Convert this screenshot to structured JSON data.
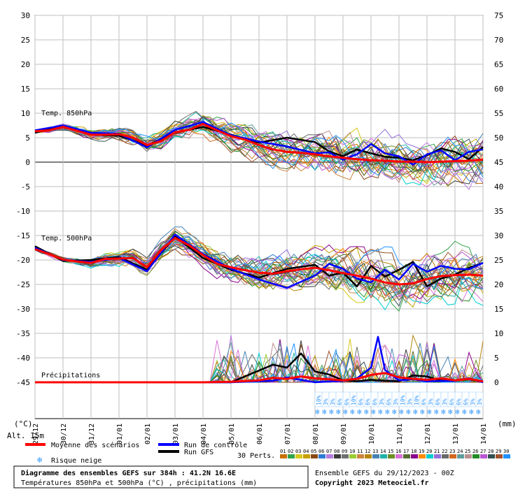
{
  "chart_data": {
    "type": "line",
    "y_left_ticks": [
      30,
      25,
      20,
      15,
      10,
      5,
      0,
      -5,
      -10,
      -15,
      -20,
      -25,
      -30,
      -35,
      -40,
      -45
    ],
    "y_right_ticks": [
      75,
      70,
      65,
      60,
      55,
      50,
      45,
      40,
      35,
      30,
      25,
      20,
      15,
      10,
      5,
      0
    ],
    "y_left_range": [
      -45,
      30
    ],
    "y_right_range": [
      0,
      75
    ],
    "y_left_unit": "(°C)",
    "y_right_unit": "(mm)",
    "x_range_hours": [
      0,
      384
    ],
    "x_ticks": [
      {
        "h": 0,
        "label": "29/12"
      },
      {
        "h": 24,
        "label": "30/12"
      },
      {
        "h": 48,
        "label": "31/12"
      },
      {
        "h": 72,
        "label": "01/01"
      },
      {
        "h": 96,
        "label": "02/01"
      },
      {
        "h": 120,
        "label": "03/01"
      },
      {
        "h": 144,
        "label": "04/01"
      },
      {
        "h": 168,
        "label": "05/01"
      },
      {
        "h": 192,
        "label": "06/01"
      },
      {
        "h": 216,
        "label": "07/01"
      },
      {
        "h": 240,
        "label": "08/01"
      },
      {
        "h": 264,
        "label": "09/01"
      },
      {
        "h": 288,
        "label": "10/01"
      },
      {
        "h": 312,
        "label": "11/01"
      },
      {
        "h": 336,
        "label": "12/01"
      },
      {
        "h": 360,
        "label": "13/01"
      },
      {
        "h": 384,
        "label": "14/01"
      }
    ],
    "panel_labels": {
      "t850": "Temp. 850hPa",
      "t500": "Temp. 500hPa",
      "precip": "Précipitations"
    },
    "altitude": "Alt. 15m",
    "series": [
      {
        "name": "Moyenne des scénarios",
        "var": "t850",
        "x": [
          0,
          12,
          24,
          36,
          48,
          60,
          72,
          84,
          96,
          108,
          120,
          132,
          144,
          156,
          168,
          180,
          192,
          204,
          216,
          228,
          240,
          252,
          264,
          276,
          288,
          300,
          312,
          324,
          336,
          348,
          360,
          372,
          384
        ],
        "y": [
          6.3,
          6.5,
          7.2,
          6.4,
          5.6,
          5.6,
          5.7,
          5.0,
          3.5,
          4.3,
          6.1,
          6.6,
          7.8,
          6.5,
          5.3,
          4.6,
          3.5,
          2.6,
          2.1,
          1.9,
          1.6,
          1.2,
          0.9,
          0.6,
          0.4,
          0.3,
          0.1,
          0.1,
          0.0,
          0.1,
          0.2,
          0.3,
          0.5
        ]
      },
      {
        "name": "Run de contrôle",
        "var": "t850",
        "x": [
          0,
          24,
          48,
          72,
          96,
          120,
          144,
          168,
          192,
          216,
          240,
          252,
          264,
          276,
          288,
          300,
          312,
          324,
          336,
          348,
          360,
          372,
          384
        ],
        "y": [
          6.5,
          7.5,
          6.0,
          5.8,
          3.0,
          6.6,
          8.2,
          5.5,
          4.2,
          3.2,
          1.8,
          2.0,
          0.5,
          1.6,
          3.7,
          1.8,
          1.2,
          -0.5,
          1.6,
          2.4,
          0.4,
          2.1,
          2.6
        ]
      },
      {
        "name": "Run GFS",
        "var": "t850",
        "x": [
          0,
          24,
          48,
          72,
          96,
          120,
          144,
          168,
          192,
          216,
          240,
          252,
          264,
          276,
          288,
          300,
          312,
          324,
          336,
          348,
          360,
          372,
          384
        ],
        "y": [
          6.0,
          7.4,
          5.6,
          5.4,
          3.4,
          6.0,
          7.2,
          5.6,
          4.0,
          5.0,
          4.1,
          2.2,
          1.2,
          2.6,
          1.8,
          1.1,
          0.9,
          0.4,
          1.4,
          2.8,
          2.1,
          0.6,
          3.1
        ]
      },
      {
        "name": "Moyenne des scénarios",
        "var": "t500",
        "x": [
          0,
          12,
          24,
          36,
          48,
          60,
          72,
          84,
          96,
          108,
          120,
          132,
          144,
          156,
          168,
          180,
          192,
          204,
          216,
          228,
          240,
          252,
          264,
          276,
          288,
          300,
          312,
          324,
          336,
          348,
          360,
          372,
          384
        ],
        "y": [
          -17.8,
          -18.8,
          -19.9,
          -20.3,
          -20.6,
          -19.8,
          -19.7,
          -19.6,
          -21.5,
          -18.0,
          -15.5,
          -17.0,
          -19.0,
          -20.8,
          -21.5,
          -22.1,
          -22.6,
          -22.8,
          -22.3,
          -21.9,
          -21.6,
          -22.1,
          -22.7,
          -23.2,
          -23.8,
          -24.6,
          -25.0,
          -24.8,
          -23.9,
          -23.3,
          -23.1,
          -23.0,
          -23.2
        ]
      },
      {
        "name": "Run de contrôle",
        "var": "t500",
        "x": [
          0,
          24,
          48,
          72,
          96,
          120,
          144,
          168,
          192,
          216,
          240,
          252,
          264,
          276,
          288,
          300,
          312,
          324,
          336,
          348,
          360,
          372,
          384
        ],
        "y": [
          -17.5,
          -20.0,
          -20.4,
          -19.6,
          -22.3,
          -14.8,
          -18.8,
          -21.8,
          -24.0,
          -25.7,
          -23.2,
          -20.8,
          -21.8,
          -23.8,
          -24.6,
          -22.0,
          -24.0,
          -20.8,
          -22.4,
          -21.2,
          -21.8,
          -21.9,
          -20.6
        ]
      },
      {
        "name": "Run GFS",
        "var": "t500",
        "x": [
          0,
          24,
          48,
          72,
          96,
          120,
          144,
          168,
          192,
          216,
          240,
          252,
          264,
          276,
          288,
          300,
          312,
          324,
          336,
          348,
          360,
          372,
          384
        ],
        "y": [
          -17.2,
          -20.2,
          -20.0,
          -19.4,
          -22.0,
          -15.2,
          -19.6,
          -22.0,
          -23.6,
          -21.8,
          -21.0,
          -23.2,
          -22.6,
          -25.4,
          -21.2,
          -23.4,
          -22.0,
          -20.4,
          -25.4,
          -23.8,
          -23.0,
          -21.6,
          -20.6
        ]
      },
      {
        "name": "Moyenne des scénarios",
        "var": "precip",
        "x": [
          0,
          24,
          48,
          72,
          96,
          120,
          144,
          168,
          192,
          204,
          216,
          228,
          240,
          252,
          264,
          276,
          288,
          300,
          312,
          324,
          336,
          348,
          360,
          372,
          384
        ],
        "y": [
          0,
          0,
          0,
          0,
          0,
          0,
          0,
          0.1,
          0.4,
          0.9,
          0.7,
          1.2,
          0.8,
          0.6,
          0.4,
          0.7,
          1.5,
          1.9,
          1.0,
          0.7,
          0.5,
          0.8,
          0.4,
          0.7,
          0.2
        ]
      },
      {
        "name": "Run de contrôle",
        "var": "precip",
        "x": [
          0,
          120,
          168,
          204,
          216,
          240,
          264,
          276,
          288,
          294,
          300,
          312,
          324,
          336,
          360,
          372,
          384
        ],
        "y": [
          0,
          0,
          0,
          0.3,
          1.0,
          0,
          0.3,
          0.8,
          3.0,
          9.3,
          2.5,
          0.4,
          0.6,
          0.2,
          0.3,
          0.8,
          0
        ]
      },
      {
        "name": "Run GFS",
        "var": "precip",
        "x": [
          0,
          120,
          168,
          204,
          216,
          228,
          240,
          252,
          264,
          276,
          288,
          300,
          312,
          324,
          336,
          348,
          360,
          372,
          384
        ],
        "y": [
          0,
          0,
          0,
          3.6,
          3.0,
          5.9,
          2.2,
          1.6,
          0.4,
          0.2,
          0.5,
          0.3,
          0.2,
          1.4,
          1.2,
          0.3,
          0.4,
          0.6,
          0.1
        ]
      }
    ],
    "ensemble_members": 30,
    "member_colors": [
      "#c87000",
      "#2fa34a",
      "#d8c818",
      "#c8a000",
      "#8b4513",
      "#2b7bd4",
      "#b87be0",
      "#3a3a3a",
      "#707070",
      "#9acd32",
      "#cd853f",
      "#b8860b",
      "#4682b4",
      "#20b2aa",
      "#6b8e23",
      "#da70d6",
      "#556b2f",
      "#8b008b",
      "#ff8c00",
      "#00ced1",
      "#9370db",
      "#696969",
      "#d2691e",
      "#5f9ea0",
      "#bc8f8f",
      "#228b22",
      "#ba55d3",
      "#2f4f4f",
      "#a0522d",
      "#1e90ff"
    ],
    "snow_risk_hours": [
      240,
      246,
      252,
      258,
      264,
      270,
      276,
      282,
      288,
      294,
      300,
      306,
      312,
      318,
      324,
      330,
      336,
      342,
      348,
      354,
      360,
      366,
      372,
      378
    ],
    "snow_risk_values": [
      "10%",
      "3%",
      "3%",
      "6%",
      "6%",
      "10%",
      "6%",
      "6%",
      "6%",
      "3%",
      "6%",
      "3%",
      "10%",
      "3%",
      "10%",
      "6%",
      "3%",
      "6%",
      "3%",
      "6%",
      "6%",
      "6%",
      "3%",
      "3%"
    ]
  },
  "legend": {
    "mean": "Moyenne des scénarios",
    "control": "Run de contrôle",
    "gfs": "Run GFS",
    "snow": "Risque neige",
    "perts": "30 Perts.",
    "member_numbers": [
      "01",
      "02",
      "03",
      "04",
      "05",
      "06",
      "07",
      "08",
      "09",
      "10",
      "11",
      "12",
      "13",
      "14",
      "15",
      "16",
      "17",
      "18",
      "19",
      "20",
      "21",
      "22",
      "23",
      "24",
      "25",
      "26",
      "27",
      "28",
      "29",
      "30"
    ]
  },
  "colors": {
    "mean": "#ff0000",
    "control": "#0000ff",
    "gfs": "#000000",
    "grid": "#bfbfbf",
    "snow": "#3399ff"
  },
  "footer": {
    "title": "Diagramme des ensembles GEFS sur 384h : 41.2N 16.6E",
    "subtitle": "Températures 850hPa et 500hPa (°C) , précipitations (mm)",
    "run": "Ensemble GEFS du 29/12/2023 - 00Z",
    "copyright": "Copyright 2023 Meteociel.fr"
  }
}
